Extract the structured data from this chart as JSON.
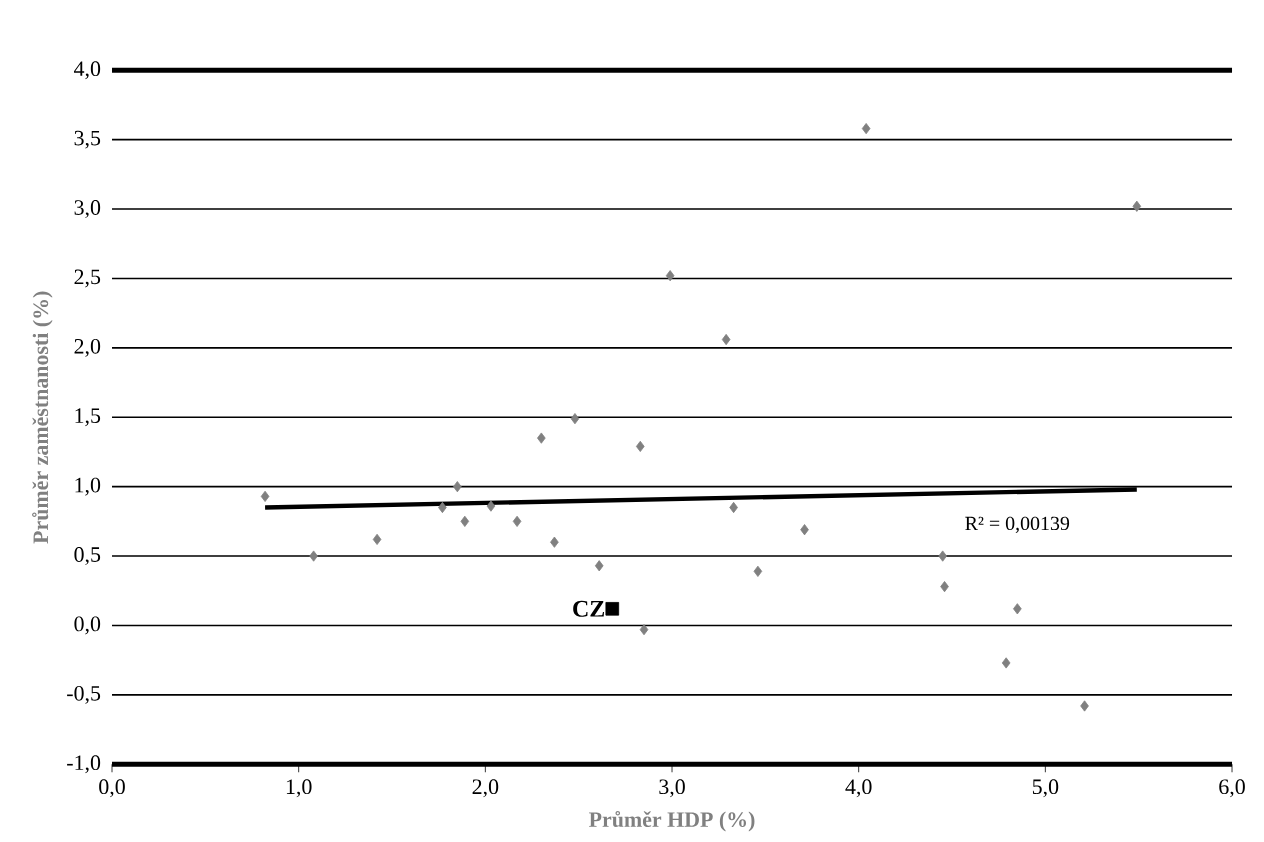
{
  "chart_data": {
    "type": "scatter",
    "xlabel": "Průměr HDP (%)",
    "ylabel": "Průměr zaměstnanosti (%)",
    "xlim": [
      0,
      6
    ],
    "ylim": [
      -1,
      4
    ],
    "xticks": [
      {
        "value": 0,
        "label": "0,0"
      },
      {
        "value": 1,
        "label": "1,0"
      },
      {
        "value": 2,
        "label": "2,0"
      },
      {
        "value": 3,
        "label": "3,0"
      },
      {
        "value": 4,
        "label": "4,0"
      },
      {
        "value": 5,
        "label": "5,0"
      },
      {
        "value": 6,
        "label": "6,0"
      }
    ],
    "yticks": [
      {
        "value": -1,
        "label": "-1,0"
      },
      {
        "value": -0.5,
        "label": "-0,5"
      },
      {
        "value": 0,
        "label": "0,0"
      },
      {
        "value": 0.5,
        "label": "0,5"
      },
      {
        "value": 1,
        "label": "1,0"
      },
      {
        "value": 1.5,
        "label": "1,5"
      },
      {
        "value": 2,
        "label": "2,0"
      },
      {
        "value": 2.5,
        "label": "2,5"
      },
      {
        "value": 3,
        "label": "3,0"
      },
      {
        "value": 3.5,
        "label": "3,5"
      },
      {
        "value": 4,
        "label": "4,0"
      }
    ],
    "grid": "y",
    "marker": "diamond",
    "series": [
      {
        "color": "#808080",
        "x": [
          0.82,
          1.08,
          1.42,
          1.77,
          1.85,
          1.89,
          2.03,
          2.17,
          2.3,
          2.37,
          2.48,
          2.61,
          2.83,
          2.85,
          2.99,
          3.29,
          3.33,
          3.46,
          3.71,
          4.04,
          4.45,
          4.46,
          4.79,
          4.85,
          5.21,
          5.49
        ],
        "values": [
          0.93,
          0.5,
          0.62,
          0.85,
          1.0,
          0.75,
          0.86,
          0.75,
          1.35,
          0.6,
          1.49,
          0.43,
          1.29,
          -0.03,
          2.52,
          2.06,
          0.85,
          0.39,
          0.69,
          3.58,
          0.5,
          0.28,
          -0.27,
          0.12,
          -0.58,
          3.02
        ]
      },
      {
        "name": "CZ",
        "color": "#000000",
        "marker": "square",
        "x": [
          2.68
        ],
        "values": [
          0.12
        ]
      },
      {
        "type": "line",
        "color": "#000000",
        "marker": "none",
        "x": [
          0.82,
          5.49
        ],
        "values": [
          0.85,
          0.98
        ]
      }
    ],
    "annotations": [
      "R² = 0,00139"
    ]
  }
}
